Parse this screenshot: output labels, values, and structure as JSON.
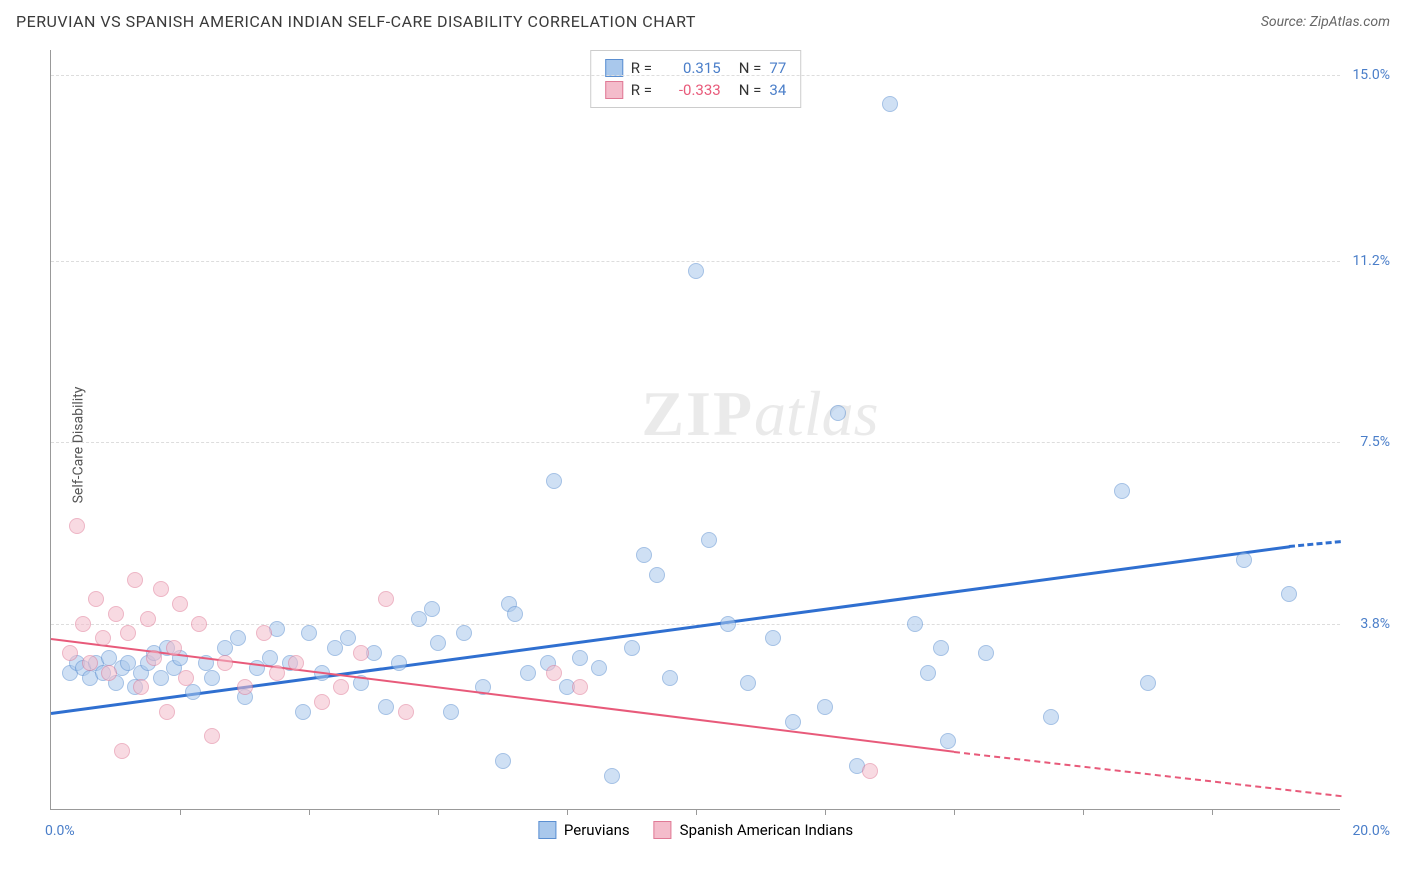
{
  "header": {
    "title": "PERUVIAN VS SPANISH AMERICAN INDIAN SELF-CARE DISABILITY CORRELATION CHART",
    "source": "Source: ZipAtlas.com"
  },
  "watermark": {
    "part1": "ZIP",
    "part2": "atlas"
  },
  "chart": {
    "type": "scatter",
    "y_axis_label": "Self-Care Disability",
    "xlim": [
      0,
      20
    ],
    "ylim": [
      0,
      15.5
    ],
    "x_origin_label": "0.0%",
    "x_end_label": "20.0%",
    "x_ticks": [
      2,
      4,
      6,
      8,
      10,
      12,
      14,
      16,
      18
    ],
    "y_gridlines": [
      3.8,
      7.5,
      11.2,
      15.0
    ],
    "y_tick_labels": [
      "3.8%",
      "7.5%",
      "11.2%",
      "15.0%"
    ],
    "y_label_color": "#4a7ec9",
    "grid_color": "#dddddd",
    "background_color": "#ffffff",
    "point_radius": 8,
    "point_opacity": 0.55,
    "series": [
      {
        "name": "Peruvians",
        "color_fill": "#a9c8ec",
        "color_stroke": "#5b8fd1",
        "r_value": "0.315",
        "r_color": "#4a7ec9",
        "n_value": "77",
        "trend": {
          "x1": 0,
          "y1": 2.0,
          "x2": 19.2,
          "y2": 5.4,
          "dash_to_x": 20,
          "dash_to_y": 5.5,
          "color": "#2f6fd0",
          "width": 3
        },
        "points": [
          [
            0.3,
            2.8
          ],
          [
            0.4,
            3.0
          ],
          [
            0.5,
            2.9
          ],
          [
            0.6,
            2.7
          ],
          [
            0.7,
            3.0
          ],
          [
            0.8,
            2.8
          ],
          [
            0.9,
            3.1
          ],
          [
            1.0,
            2.6
          ],
          [
            1.1,
            2.9
          ],
          [
            1.2,
            3.0
          ],
          [
            1.3,
            2.5
          ],
          [
            1.4,
            2.8
          ],
          [
            1.5,
            3.0
          ],
          [
            1.6,
            3.2
          ],
          [
            1.7,
            2.7
          ],
          [
            1.8,
            3.3
          ],
          [
            1.9,
            2.9
          ],
          [
            2.0,
            3.1
          ],
          [
            2.2,
            2.4
          ],
          [
            2.4,
            3.0
          ],
          [
            2.5,
            2.7
          ],
          [
            2.7,
            3.3
          ],
          [
            2.9,
            3.5
          ],
          [
            3.0,
            2.3
          ],
          [
            3.2,
            2.9
          ],
          [
            3.4,
            3.1
          ],
          [
            3.5,
            3.7
          ],
          [
            3.7,
            3.0
          ],
          [
            3.9,
            2.0
          ],
          [
            4.0,
            3.6
          ],
          [
            4.2,
            2.8
          ],
          [
            4.4,
            3.3
          ],
          [
            4.6,
            3.5
          ],
          [
            4.8,
            2.6
          ],
          [
            5.0,
            3.2
          ],
          [
            5.2,
            2.1
          ],
          [
            5.4,
            3.0
          ],
          [
            5.7,
            3.9
          ],
          [
            5.9,
            4.1
          ],
          [
            6.0,
            3.4
          ],
          [
            6.2,
            2.0
          ],
          [
            6.4,
            3.6
          ],
          [
            6.7,
            2.5
          ],
          [
            7.0,
            1.0
          ],
          [
            7.1,
            4.2
          ],
          [
            7.2,
            4.0
          ],
          [
            7.4,
            2.8
          ],
          [
            7.7,
            3.0
          ],
          [
            7.8,
            6.7
          ],
          [
            8.0,
            2.5
          ],
          [
            8.2,
            3.1
          ],
          [
            8.5,
            2.9
          ],
          [
            8.7,
            0.7
          ],
          [
            9.0,
            3.3
          ],
          [
            9.2,
            5.2
          ],
          [
            9.4,
            4.8
          ],
          [
            9.6,
            2.7
          ],
          [
            10.0,
            11.0
          ],
          [
            10.2,
            5.5
          ],
          [
            10.5,
            3.8
          ],
          [
            10.8,
            2.6
          ],
          [
            11.2,
            3.5
          ],
          [
            11.5,
            1.8
          ],
          [
            12.0,
            2.1
          ],
          [
            12.2,
            8.1
          ],
          [
            12.5,
            0.9
          ],
          [
            13.0,
            14.4
          ],
          [
            13.4,
            3.8
          ],
          [
            13.6,
            2.8
          ],
          [
            13.8,
            3.3
          ],
          [
            13.9,
            1.4
          ],
          [
            14.5,
            3.2
          ],
          [
            15.5,
            1.9
          ],
          [
            16.6,
            6.5
          ],
          [
            17.0,
            2.6
          ],
          [
            18.5,
            5.1
          ],
          [
            19.2,
            4.4
          ]
        ]
      },
      {
        "name": "Spanish American Indians",
        "color_fill": "#f4bccb",
        "color_stroke": "#e07a96",
        "r_value": "-0.333",
        "r_color": "#e85a7a",
        "n_value": "34",
        "trend": {
          "x1": 0,
          "y1": 3.5,
          "x2": 14.0,
          "y2": 1.2,
          "dash_to_x": 20,
          "dash_to_y": 0.3,
          "color": "#e85a7a",
          "width": 2
        },
        "points": [
          [
            0.3,
            3.2
          ],
          [
            0.4,
            5.8
          ],
          [
            0.5,
            3.8
          ],
          [
            0.6,
            3.0
          ],
          [
            0.7,
            4.3
          ],
          [
            0.8,
            3.5
          ],
          [
            0.9,
            2.8
          ],
          [
            1.0,
            4.0
          ],
          [
            1.1,
            1.2
          ],
          [
            1.2,
            3.6
          ],
          [
            1.3,
            4.7
          ],
          [
            1.4,
            2.5
          ],
          [
            1.5,
            3.9
          ],
          [
            1.6,
            3.1
          ],
          [
            1.7,
            4.5
          ],
          [
            1.8,
            2.0
          ],
          [
            1.9,
            3.3
          ],
          [
            2.0,
            4.2
          ],
          [
            2.1,
            2.7
          ],
          [
            2.3,
            3.8
          ],
          [
            2.5,
            1.5
          ],
          [
            2.7,
            3.0
          ],
          [
            3.0,
            2.5
          ],
          [
            3.3,
            3.6
          ],
          [
            3.5,
            2.8
          ],
          [
            3.8,
            3.0
          ],
          [
            4.2,
            2.2
          ],
          [
            4.5,
            2.5
          ],
          [
            4.8,
            3.2
          ],
          [
            5.2,
            4.3
          ],
          [
            5.5,
            2.0
          ],
          [
            7.8,
            2.8
          ],
          [
            8.2,
            2.5
          ],
          [
            12.7,
            0.8
          ]
        ]
      }
    ]
  },
  "correlation_legend": {
    "r_label": "R  =",
    "n_label": "N  ="
  },
  "series_legend_labels": [
    "Peruvians",
    "Spanish American Indians"
  ]
}
